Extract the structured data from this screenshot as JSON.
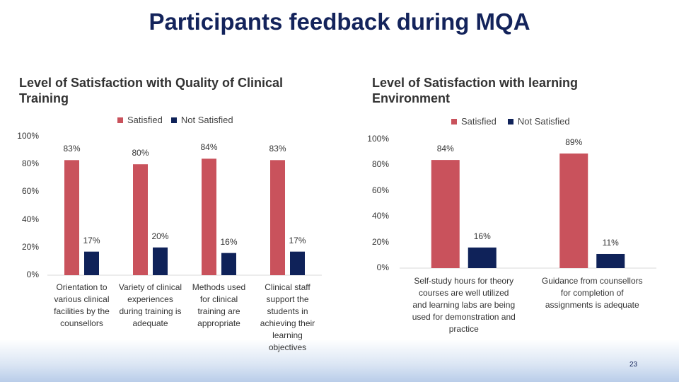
{
  "title": "Participants feedback during MQA",
  "page_number": "23",
  "colors": {
    "satisfied": "#c9525c",
    "not_satisfied": "#0f2259",
    "title": "#13235b"
  },
  "chart_data": [
    {
      "type": "bar",
      "title": "Level of Satisfaction with Quality of Clinical Training",
      "legend": [
        "Satisfied",
        "Not Satisfied"
      ],
      "legend_position": "top",
      "categories": [
        "Orientation to various clinical facilities by the counsellors",
        "Variety of clinical experiences during training is adequate",
        "Methods used for clinical training are appropriate",
        "Clinical staff support the students in achieving their learning objectives"
      ],
      "category_labels": [
        "Orientation to\nvarious clinical\nfacilities by the\ncounsellors",
        "Variety of clinical\nexperiences\nduring training is\nadequate",
        "Methods used\nfor clinical\ntraining are\nappropriate",
        "Clinical staff\nsupport the\nstudents in\nachieving their\nlearning\nobjectives"
      ],
      "series": [
        {
          "name": "Satisfied",
          "values": [
            83,
            80,
            84,
            83
          ]
        },
        {
          "name": "Not Satisfied",
          "values": [
            17,
            20,
            16,
            17
          ]
        }
      ],
      "data_labels": [
        [
          "83%",
          "80%",
          "84%",
          "83%"
        ],
        [
          "17%",
          "20%",
          "16%",
          "17%"
        ]
      ],
      "yticks": [
        "0%",
        "20%",
        "40%",
        "60%",
        "80%",
        "100%"
      ],
      "ylim": [
        0,
        100
      ],
      "grid": false
    },
    {
      "type": "bar",
      "title": "Level of Satisfaction with learning Environment",
      "legend": [
        "Satisfied",
        "Not Satisfied"
      ],
      "legend_position": "top",
      "categories": [
        "Self-study hours for theory courses are well utilized and learning labs are being used for demonstration and practice",
        "Guidance from counsellors for completion of assignments is adequate"
      ],
      "category_labels": [
        "Self-study hours for theory\ncourses are  well utilized\nand learning labs are being\nused for demonstration and\npractice",
        "Guidance from counsellors\nfor completion of\nassignments is adequate"
      ],
      "series": [
        {
          "name": "Satisfied",
          "values": [
            84,
            89
          ]
        },
        {
          "name": "Not Satisfied",
          "values": [
            16,
            11
          ]
        }
      ],
      "data_labels": [
        [
          "84%",
          "89%"
        ],
        [
          "16%",
          "11%"
        ]
      ],
      "yticks": [
        "0%",
        "20%",
        "40%",
        "60%",
        "80%",
        "100%"
      ],
      "ylim": [
        0,
        100
      ],
      "grid": false
    }
  ]
}
